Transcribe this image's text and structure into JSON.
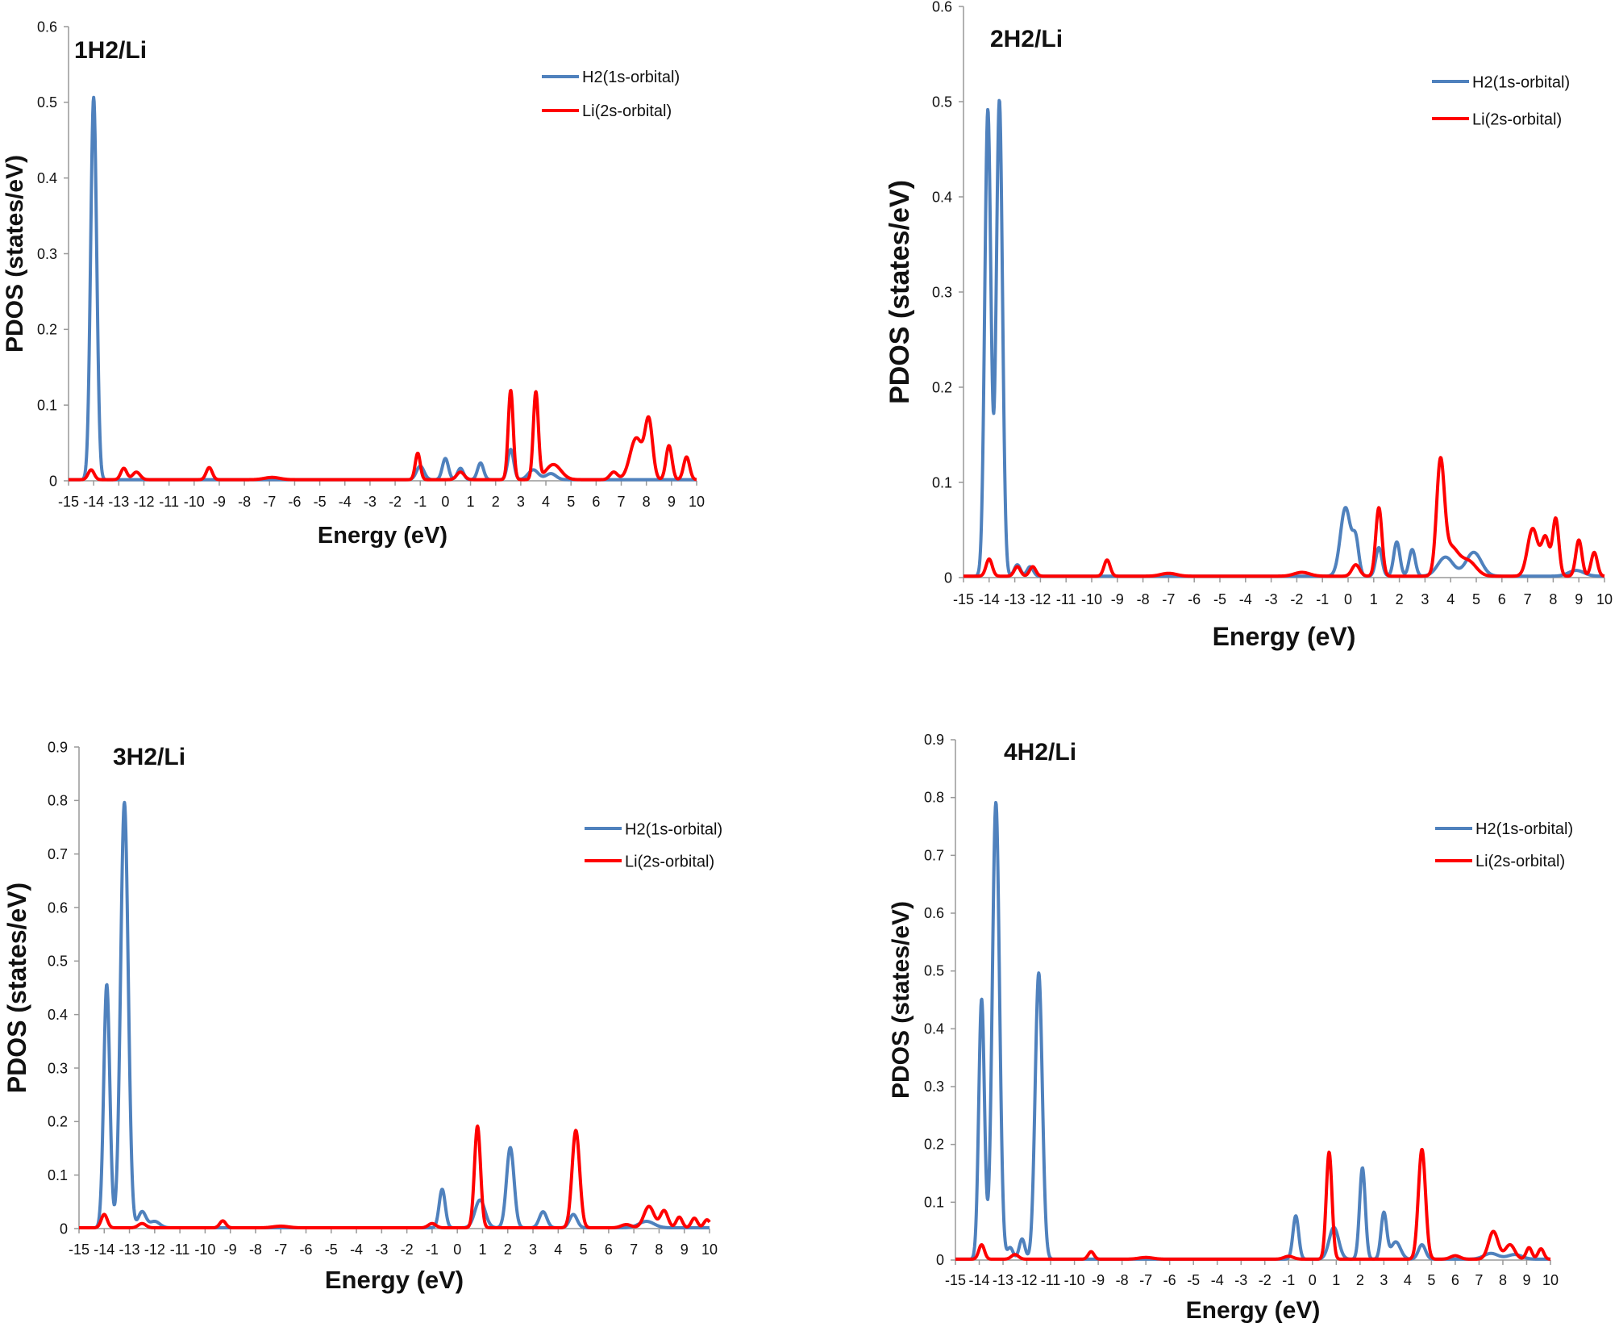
{
  "chart_data": [
    {
      "type": "line",
      "title": "1H2/Li",
      "xlabel": "Energy (eV)",
      "ylabel": "PDOS (states/eV)",
      "xlim": [
        -15,
        10
      ],
      "ylim": [
        0,
        0.6
      ],
      "yticks": [
        0,
        0.1,
        0.2,
        0.3,
        0.4,
        0.5,
        0.6
      ],
      "ytick_labels": [
        "0",
        "0.1",
        "0.2",
        "0.3",
        "0.4",
        "0.5",
        "0.6"
      ],
      "xticks": [
        -15,
        -14,
        -13,
        -12,
        -11,
        -10,
        -9,
        -8,
        -7,
        -6,
        -5,
        -4,
        -3,
        -2,
        -1,
        0,
        1,
        2,
        3,
        4,
        5,
        6,
        7,
        8,
        9,
        10
      ],
      "xtick_labels": [
        "-15",
        "-14",
        "-13",
        "-12",
        "-11",
        "-10",
        "-9",
        "-8",
        "-7",
        "-6",
        "-5",
        "-4",
        "-3",
        "-2",
        "-1",
        "0",
        "1",
        "2",
        "3",
        "4",
        "5",
        "6",
        "7",
        "8",
        "9",
        "10"
      ],
      "legend_position": "top-right",
      "series": [
        {
          "name": "H2(1s-orbital)",
          "color": "#4f81bd",
          "peaks": [
            [
              -14.0,
              0.505,
              0.12
            ],
            [
              -1.0,
              0.018,
              0.15
            ],
            [
              0.0,
              0.028,
              0.12
            ],
            [
              0.6,
              0.015,
              0.12
            ],
            [
              1.4,
              0.022,
              0.12
            ],
            [
              2.6,
              0.04,
              0.12
            ],
            [
              3.5,
              0.013,
              0.2
            ],
            [
              4.2,
              0.008,
              0.2
            ]
          ]
        },
        {
          "name": "Li(2s-orbital)",
          "color": "#ff0000",
          "peaks": [
            [
              -14.1,
              0.013,
              0.12
            ],
            [
              -12.8,
              0.015,
              0.12
            ],
            [
              -12.3,
              0.01,
              0.15
            ],
            [
              -9.4,
              0.016,
              0.12
            ],
            [
              -6.9,
              0.003,
              0.3
            ],
            [
              -1.1,
              0.035,
              0.1
            ],
            [
              0.6,
              0.01,
              0.15
            ],
            [
              2.6,
              0.118,
              0.1
            ],
            [
              3.6,
              0.115,
              0.1
            ],
            [
              4.3,
              0.02,
              0.3
            ],
            [
              6.7,
              0.01,
              0.15
            ],
            [
              7.6,
              0.055,
              0.25
            ],
            [
              8.1,
              0.075,
              0.15
            ],
            [
              8.9,
              0.045,
              0.12
            ],
            [
              9.6,
              0.03,
              0.12
            ]
          ]
        }
      ]
    },
    {
      "type": "line",
      "title": "2H2/Li",
      "xlabel": "Energy (eV)",
      "ylabel": "PDOS (states/eV)",
      "xlim": [
        -15,
        10
      ],
      "ylim": [
        0,
        0.6
      ],
      "yticks": [
        0,
        0.1,
        0.2,
        0.3,
        0.4,
        0.5,
        0.6
      ],
      "ytick_labels": [
        "0",
        "0.1",
        "0.2",
        "0.3",
        "0.4",
        "0.5",
        "0.6"
      ],
      "xticks": [
        -15,
        -14,
        -13,
        -12,
        -11,
        -10,
        -9,
        -8,
        -7,
        -6,
        -5,
        -4,
        -3,
        -2,
        -1,
        0,
        1,
        2,
        3,
        4,
        5,
        6,
        7,
        8,
        9,
        10
      ],
      "xtick_labels": [
        "-15",
        "-14",
        "-13",
        "-12",
        "-11",
        "-10",
        "-9",
        "-8",
        "-7",
        "-6",
        "-5",
        "-4",
        "-3",
        "-2",
        "-1",
        "0",
        "1",
        "2",
        "3",
        "4",
        "5",
        "6",
        "7",
        "8",
        "9",
        "10"
      ],
      "legend_position": "top-right",
      "series": [
        {
          "name": "H2(1s-orbital)",
          "color": "#4f81bd",
          "peaks": [
            [
              -14.05,
              0.49,
              0.12
            ],
            [
              -13.6,
              0.5,
              0.12
            ],
            [
              -12.9,
              0.012,
              0.12
            ],
            [
              -12.4,
              0.01,
              0.12
            ],
            [
              -0.1,
              0.072,
              0.2
            ],
            [
              0.3,
              0.035,
              0.12
            ],
            [
              1.2,
              0.03,
              0.12
            ],
            [
              1.9,
              0.036,
              0.12
            ],
            [
              2.5,
              0.028,
              0.12
            ],
            [
              3.8,
              0.02,
              0.3
            ],
            [
              4.9,
              0.025,
              0.3
            ],
            [
              8.9,
              0.006,
              0.3
            ]
          ]
        },
        {
          "name": "Li(2s-orbital)",
          "color": "#ff0000",
          "peaks": [
            [
              -14.0,
              0.018,
              0.12
            ],
            [
              -12.9,
              0.01,
              0.12
            ],
            [
              -12.3,
              0.01,
              0.12
            ],
            [
              -9.4,
              0.017,
              0.12
            ],
            [
              -7.0,
              0.003,
              0.3
            ],
            [
              -1.8,
              0.004,
              0.3
            ],
            [
              0.3,
              0.012,
              0.15
            ],
            [
              1.2,
              0.072,
              0.12
            ],
            [
              3.6,
              0.112,
              0.15
            ],
            [
              4.0,
              0.03,
              0.3
            ],
            [
              4.7,
              0.015,
              0.3
            ],
            [
              7.2,
              0.05,
              0.2
            ],
            [
              7.7,
              0.04,
              0.15
            ],
            [
              8.1,
              0.06,
              0.12
            ],
            [
              9.0,
              0.038,
              0.12
            ],
            [
              9.6,
              0.025,
              0.12
            ]
          ]
        }
      ]
    },
    {
      "type": "line",
      "title": "3H2/Li",
      "xlabel": "Energy (eV)",
      "ylabel": "PDOS (states/eV)",
      "xlim": [
        -15,
        10
      ],
      "ylim": [
        0,
        0.9
      ],
      "yticks": [
        0,
        0.1,
        0.2,
        0.3,
        0.4,
        0.5,
        0.6,
        0.7,
        0.8,
        0.9
      ],
      "ytick_labels": [
        "0",
        "0.1",
        "0.2",
        "0.3",
        "0.4",
        "0.5",
        "0.6",
        "0.7",
        "0.8",
        "0.9"
      ],
      "xticks": [
        -15,
        -14,
        -13,
        -12,
        -11,
        -10,
        -9,
        -8,
        -7,
        -6,
        -5,
        -4,
        -3,
        -2,
        -1,
        0,
        1,
        2,
        3,
        4,
        5,
        6,
        7,
        8,
        9,
        10
      ],
      "xtick_labels": [
        "-15",
        "-14",
        "-13",
        "-12",
        "-11",
        "-10",
        "-9",
        "-8",
        "-7",
        "-6",
        "-5",
        "-4",
        "-3",
        "-2",
        "-1",
        "0",
        "1",
        "2",
        "3",
        "4",
        "5",
        "6",
        "7",
        "8",
        "9",
        "10"
      ],
      "legend_position": "right",
      "series": [
        {
          "name": "H2(1s-orbital)",
          "color": "#4f81bd",
          "peaks": [
            [
              -13.9,
              0.455,
              0.12
            ],
            [
              -13.2,
              0.795,
              0.15
            ],
            [
              -12.5,
              0.03,
              0.15
            ],
            [
              -12.0,
              0.012,
              0.2
            ],
            [
              -0.6,
              0.072,
              0.12
            ],
            [
              0.9,
              0.052,
              0.2
            ],
            [
              2.1,
              0.15,
              0.15
            ],
            [
              3.4,
              0.03,
              0.15
            ],
            [
              4.6,
              0.025,
              0.15
            ],
            [
              7.5,
              0.012,
              0.3
            ]
          ]
        },
        {
          "name": "Li(2s-orbital)",
          "color": "#ff0000",
          "peaks": [
            [
              -14.0,
              0.025,
              0.12
            ],
            [
              -12.5,
              0.008,
              0.15
            ],
            [
              -9.3,
              0.013,
              0.12
            ],
            [
              -7.0,
              0.003,
              0.3
            ],
            [
              -1.0,
              0.008,
              0.15
            ],
            [
              0.8,
              0.19,
              0.12
            ],
            [
              4.7,
              0.182,
              0.15
            ],
            [
              6.7,
              0.006,
              0.2
            ],
            [
              7.6,
              0.04,
              0.2
            ],
            [
              8.2,
              0.032,
              0.15
            ],
            [
              8.8,
              0.02,
              0.12
            ],
            [
              9.4,
              0.018,
              0.12
            ],
            [
              9.9,
              0.015,
              0.12
            ]
          ]
        }
      ]
    },
    {
      "type": "line",
      "title": "4H2/Li",
      "xlabel": "Energy (eV)",
      "ylabel": "PDOS (states/eV)",
      "xlim": [
        -15,
        10
      ],
      "ylim": [
        0,
        0.9
      ],
      "yticks": [
        0,
        0.1,
        0.2,
        0.3,
        0.4,
        0.5,
        0.6,
        0.7,
        0.8,
        0.9
      ],
      "ytick_labels": [
        "0",
        "0.1",
        "0.2",
        "0.3",
        "0.4",
        "0.5",
        "0.6",
        "0.7",
        "0.8",
        "0.9"
      ],
      "xticks": [
        -15,
        -14,
        -13,
        -12,
        -11,
        -10,
        -9,
        -8,
        -7,
        -6,
        -5,
        -4,
        -3,
        -2,
        -1,
        0,
        1,
        2,
        3,
        4,
        5,
        6,
        7,
        8,
        9,
        10
      ],
      "xtick_labels": [
        "-15",
        "-14",
        "-13",
        "-12",
        "-11",
        "-10",
        "-9",
        "-8",
        "-7",
        "-6",
        "-5",
        "-4",
        "-3",
        "-2",
        "-1",
        "0",
        "1",
        "2",
        "3",
        "4",
        "5",
        "6",
        "7",
        "8",
        "9",
        "10"
      ],
      "legend_position": "right",
      "series": [
        {
          "name": "H2(1s-orbital)",
          "color": "#4f81bd",
          "peaks": [
            [
              -13.9,
              0.45,
              0.12
            ],
            [
              -13.3,
              0.79,
              0.15
            ],
            [
              -12.7,
              0.02,
              0.12
            ],
            [
              -12.2,
              0.035,
              0.12
            ],
            [
              -11.5,
              0.495,
              0.15
            ],
            [
              -0.7,
              0.075,
              0.12
            ],
            [
              0.9,
              0.055,
              0.2
            ],
            [
              2.1,
              0.158,
              0.12
            ],
            [
              3.0,
              0.08,
              0.12
            ],
            [
              3.5,
              0.03,
              0.2
            ],
            [
              4.6,
              0.025,
              0.15
            ],
            [
              7.5,
              0.01,
              0.3
            ],
            [
              8.5,
              0.008,
              0.3
            ]
          ]
        },
        {
          "name": "Li(2s-orbital)",
          "color": "#ff0000",
          "peaks": [
            [
              -13.9,
              0.025,
              0.12
            ],
            [
              -12.5,
              0.008,
              0.15
            ],
            [
              -9.3,
              0.013,
              0.12
            ],
            [
              -7.0,
              0.003,
              0.3
            ],
            [
              -1.0,
              0.005,
              0.2
            ],
            [
              0.7,
              0.185,
              0.12
            ],
            [
              4.6,
              0.19,
              0.15
            ],
            [
              6.0,
              0.006,
              0.2
            ],
            [
              7.6,
              0.048,
              0.2
            ],
            [
              8.3,
              0.025,
              0.2
            ],
            [
              9.1,
              0.02,
              0.12
            ],
            [
              9.6,
              0.018,
              0.12
            ]
          ]
        }
      ]
    }
  ]
}
